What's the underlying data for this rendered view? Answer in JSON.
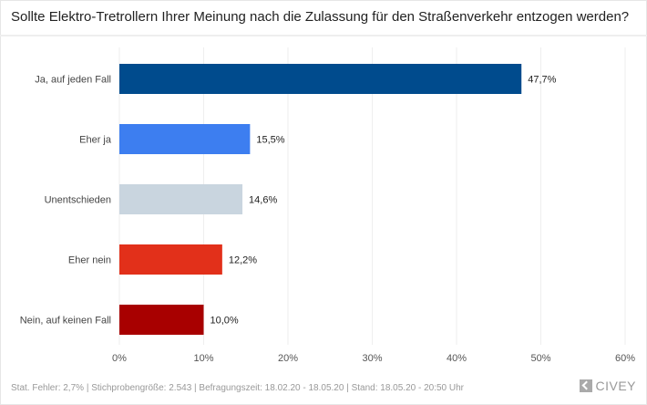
{
  "chart_data": {
    "type": "bar",
    "orientation": "horizontal",
    "title": "Sollte Elektro-Tretrollern Ihrer Meinung nach die Zulassung für den Straßenverkehr entzogen werden?",
    "categories": [
      "Ja, auf jeden Fall",
      "Eher ja",
      "Unentschieden",
      "Eher nein",
      "Nein, auf keinen Fall"
    ],
    "values": [
      47.7,
      15.5,
      14.6,
      12.2,
      10.0
    ],
    "value_labels": [
      "47,7%",
      "15,5%",
      "14,6%",
      "12,2%",
      "10,0%"
    ],
    "colors": [
      "#004b8d",
      "#3d7ef0",
      "#c9d5df",
      "#e2301a",
      "#a80000"
    ],
    "xlim": [
      0,
      60
    ],
    "xticks": [
      0,
      10,
      20,
      30,
      40,
      50,
      60
    ],
    "xtick_labels": [
      "0%",
      "10%",
      "20%",
      "30%",
      "40%",
      "50%",
      "60%"
    ],
    "grid": true
  },
  "footer": {
    "text": "Stat. Fehler: 2,7% | Stichprobengröße: 2.543 | Befragungszeit: 18.02.20 - 18.05.20 | Stand: 18.05.20 - 20:50 Uhr",
    "logo": "CIVEY"
  }
}
